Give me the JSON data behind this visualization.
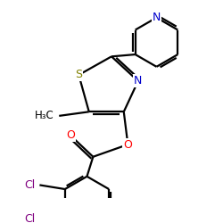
{
  "bg_color": "#ffffff",
  "atom_colors": {
    "N": "#0000cc",
    "O": "#ff0000",
    "S": "#808000",
    "Cl": "#800080",
    "C": "#000000"
  },
  "bond_color": "#000000",
  "bond_width": 1.6,
  "dbo": 0.055,
  "figsize": [
    2.5,
    2.5
  ],
  "dpi": 100
}
